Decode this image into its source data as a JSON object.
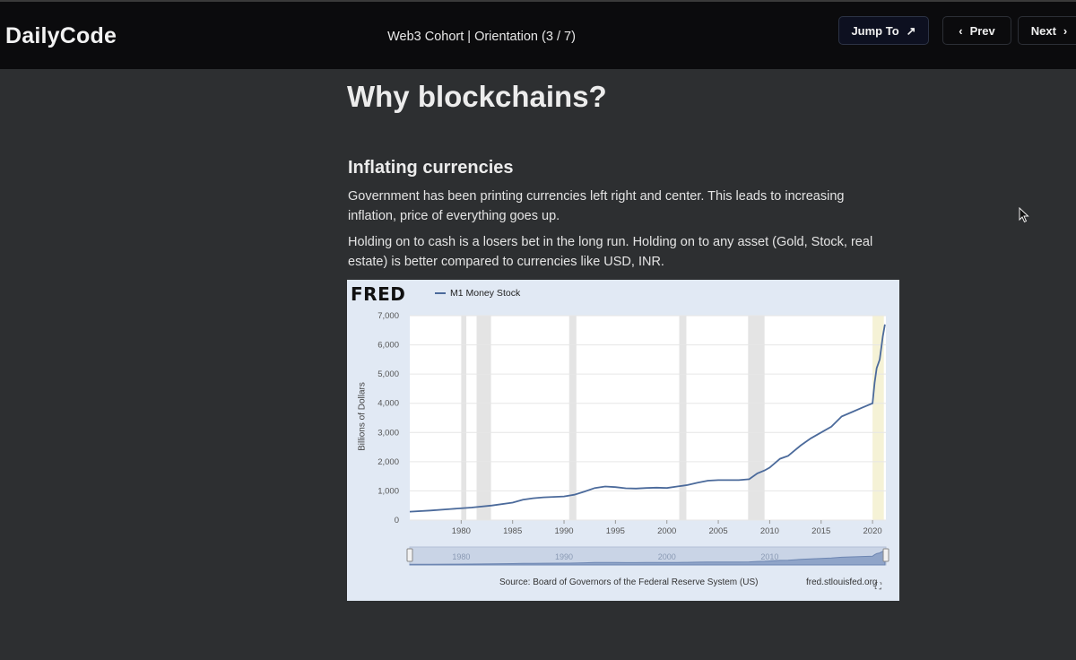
{
  "header": {
    "brand": "DailyCode",
    "breadcrumb": "Web3 Cohort | Orientation (3 / 7)",
    "jump_label": "Jump To",
    "prev_label": "Prev",
    "next_label": "Next"
  },
  "content": {
    "title": "Why blockchains?",
    "section_title": "Inflating currencies",
    "paragraph_1": "Government has been printing currencies left right and center. This leads to increasing inflation, price of everything goes up.",
    "paragraph_2": "Holding on to cash is a losers bet in the long run. Holding on to any asset (Gold, Stock, real estate) is better compared to currencies like USD, INR."
  },
  "chart_panel": {
    "logo": "FRED",
    "legend": "M1 Money Stock",
    "ylabel": "Billions of Dollars",
    "source": "Source: Board of Governors of the Federal Reserve System (US)",
    "url": "fred.stlouisfed.org"
  },
  "chart_data": {
    "type": "line",
    "title": "",
    "xlabel": "",
    "ylabel": "Billions of Dollars",
    "xlim": [
      1975,
      2021.3
    ],
    "ylim": [
      0,
      7000
    ],
    "x_ticks": [
      1980,
      1985,
      1990,
      1995,
      2000,
      2005,
      2010,
      2015,
      2020
    ],
    "y_ticks": [
      "0",
      "1,000",
      "2,000",
      "3,000",
      "4,000",
      "5,000",
      "6,000",
      "7,000"
    ],
    "navigator_labels": [
      "1980",
      "1990",
      "2000",
      "2010"
    ],
    "recessions": [
      [
        1980.0,
        1980.5
      ],
      [
        1981.5,
        1982.9
      ],
      [
        1990.5,
        1991.2
      ],
      [
        2001.2,
        2001.9
      ],
      [
        2007.9,
        2009.5
      ],
      [
        2020.0,
        2020.4
      ]
    ],
    "series": [
      {
        "name": "M1 Money Stock",
        "color": "#4b6a9b",
        "x": [
          1975,
          1977,
          1979,
          1981,
          1983,
          1985,
          1986,
          1987,
          1988,
          1990,
          1991,
          1992,
          1993,
          1994,
          1995,
          1996,
          1997,
          1998,
          1999,
          2000,
          2001,
          2002,
          2003,
          2004,
          2005,
          2006,
          2007,
          2008,
          2008.8,
          2009.5,
          2010,
          2011,
          2011.8,
          2013,
          2014,
          2015,
          2016,
          2017,
          2018,
          2019,
          2020,
          2020.2,
          2020.4,
          2020.7,
          2021,
          2021.2
        ],
        "y": [
          290,
          330,
          380,
          430,
          500,
          600,
          700,
          750,
          780,
          810,
          870,
          980,
          1100,
          1150,
          1130,
          1090,
          1080,
          1100,
          1110,
          1100,
          1150,
          1200,
          1280,
          1350,
          1370,
          1370,
          1370,
          1400,
          1600,
          1700,
          1800,
          2100,
          2200,
          2550,
          2800,
          3000,
          3200,
          3550,
          3700,
          3850,
          4000,
          4700,
          5200,
          5500,
          6300,
          6700
        ]
      }
    ]
  }
}
